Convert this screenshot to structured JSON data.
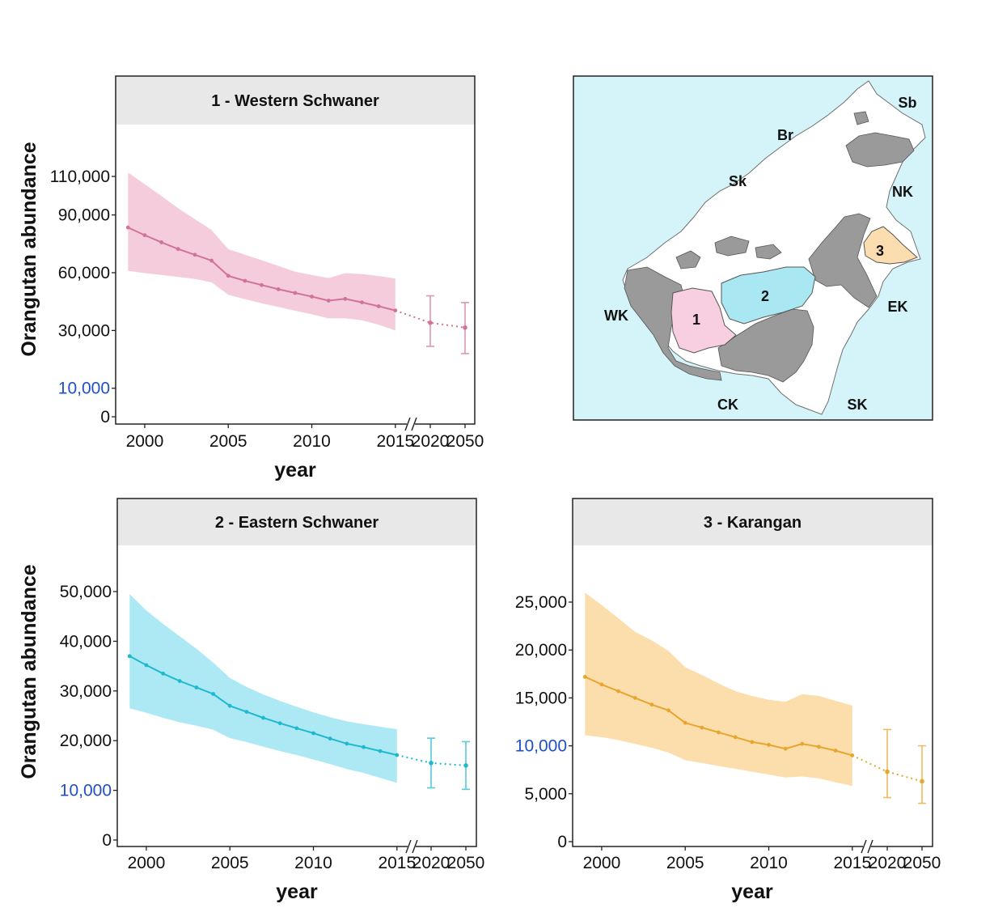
{
  "figure": {
    "ylabel": "Orangutan abundance",
    "xlabel": "year",
    "future_tick_labels": [
      "2020",
      "2050"
    ]
  },
  "chart_data": [
    {
      "type": "line",
      "title": "1 - Western Schwaner",
      "color": "#d0739a",
      "band_color": "#f4c9da",
      "xlabel": "year",
      "ylabel": "Orangutan abundance",
      "x": [
        1999,
        2000,
        2001,
        2002,
        2003,
        2004,
        2005,
        2006,
        2007,
        2008,
        2009,
        2010,
        2011,
        2012,
        2013,
        2014,
        2015
      ],
      "xticks": [
        2000,
        2005,
        2010,
        2015
      ],
      "xlim": [
        1998.6,
        2015.3
      ],
      "values": [
        83500,
        79500,
        75800,
        72300,
        69300,
        66300,
        58400,
        55800,
        53600,
        51400,
        49500,
        47600,
        45500,
        46400,
        44600,
        42600,
        40400
      ],
      "lower": [
        61000,
        59800,
        58800,
        57800,
        56800,
        55000,
        48500,
        46300,
        44100,
        42200,
        40300,
        38400,
        36300,
        36300,
        35300,
        33000,
        30000
      ],
      "upper": [
        112000,
        106000,
        99800,
        93500,
        87800,
        82200,
        72200,
        69300,
        66500,
        63500,
        60500,
        58800,
        57200,
        59800,
        59300,
        58300,
        57000
      ],
      "projections": [
        {
          "label": "2020",
          "value": 34000,
          "lower": 24500,
          "upper": 48000
        },
        {
          "label": "2050",
          "value": 31500,
          "lower": 22000,
          "upper": 44500
        }
      ],
      "yscale": "segmented",
      "scale_knots": [
        [
          0,
          0
        ],
        [
          10000,
          40
        ],
        [
          30000,
          121
        ],
        [
          60000,
          202
        ],
        [
          90000,
          283
        ],
        [
          110000,
          337
        ]
      ],
      "yticks": [
        {
          "v": 0,
          "label": "0",
          "blue": false
        },
        {
          "v": 10000,
          "label": "10,000",
          "blue": true
        },
        {
          "v": 30000,
          "label": "30,000",
          "blue": false
        },
        {
          "v": 60000,
          "label": "60,000",
          "blue": false
        },
        {
          "v": 90000,
          "label": "90,000",
          "blue": false
        },
        {
          "v": 110000,
          "label": "110,000",
          "blue": false
        }
      ]
    },
    {
      "type": "line",
      "title": "2 - Eastern Schwaner",
      "color": "#1fb9cf",
      "band_color": "#a8e8f4",
      "xlabel": "year",
      "ylabel": "Orangutan abundance",
      "x": [
        1999,
        2000,
        2001,
        2002,
        2003,
        2004,
        2005,
        2006,
        2007,
        2008,
        2009,
        2010,
        2011,
        2012,
        2013,
        2014,
        2015
      ],
      "xticks": [
        2000,
        2005,
        2010,
        2015
      ],
      "xlim": [
        1998.6,
        2015.3
      ],
      "values": [
        37000,
        35200,
        33500,
        32000,
        30700,
        29400,
        27000,
        25800,
        24600,
        23500,
        22500,
        21500,
        20400,
        19400,
        18700,
        17900,
        17100
      ],
      "lower": [
        26500,
        25600,
        24600,
        23700,
        23000,
        22200,
        20500,
        19700,
        18800,
        17900,
        17100,
        16200,
        15300,
        14300,
        13500,
        12500,
        11500
      ],
      "upper": [
        49500,
        46200,
        43500,
        41000,
        38500,
        35700,
        32600,
        30800,
        29300,
        28000,
        26800,
        25700,
        24700,
        23900,
        23300,
        22800,
        22300
      ],
      "projections": [
        {
          "label": "2020",
          "value": 15500,
          "lower": 10500,
          "upper": 20500
        },
        {
          "label": "2050",
          "value": 15000,
          "lower": 10200,
          "upper": 19800
        }
      ],
      "yscale": "linear",
      "ylim": [
        0,
        50000
      ],
      "yticks": [
        {
          "v": 0,
          "label": "0",
          "blue": false
        },
        {
          "v": 10000,
          "label": "10,000",
          "blue": true
        },
        {
          "v": 20000,
          "label": "20,000",
          "blue": false
        },
        {
          "v": 30000,
          "label": "30,000",
          "blue": false
        },
        {
          "v": 40000,
          "label": "40,000",
          "blue": false
        },
        {
          "v": 50000,
          "label": "50,000",
          "blue": false
        }
      ]
    },
    {
      "type": "line",
      "title": "3 - Karangan",
      "color": "#e8a530",
      "band_color": "#fbdca6",
      "xlabel": "year",
      "ylabel": "",
      "x": [
        1999,
        2000,
        2001,
        2002,
        2003,
        2004,
        2005,
        2006,
        2007,
        2008,
        2009,
        2010,
        2011,
        2012,
        2013,
        2014,
        2015
      ],
      "xticks": [
        2000,
        2005,
        2010,
        2015
      ],
      "xlim": [
        1998.6,
        2015.3
      ],
      "values": [
        17200,
        16400,
        15700,
        15000,
        14300,
        13700,
        12400,
        11900,
        11400,
        10900,
        10400,
        10100,
        9700,
        10200,
        9900,
        9500,
        9000
      ],
      "lower": [
        11100,
        10900,
        10600,
        10200,
        9800,
        9300,
        8500,
        8200,
        7900,
        7600,
        7300,
        7000,
        6700,
        6800,
        6600,
        6200,
        5800
      ],
      "upper": [
        26000,
        24700,
        23300,
        21900,
        21000,
        19900,
        18200,
        17400,
        16500,
        15700,
        15200,
        14800,
        14600,
        15400,
        15200,
        14700,
        14200
      ],
      "projections": [
        {
          "label": "2020",
          "value": 7300,
          "lower": 4600,
          "upper": 11700
        },
        {
          "label": "2050",
          "value": 6300,
          "lower": 4000,
          "upper": 10000
        }
      ],
      "yscale": "linear",
      "ylim": [
        0,
        25000
      ],
      "yticks": [
        {
          "v": 0,
          "label": "0",
          "blue": false
        },
        {
          "v": 5000,
          "label": "5,000",
          "blue": false
        },
        {
          "v": 10000,
          "label": "10,000",
          "blue": true
        },
        {
          "v": 15000,
          "label": "15,000",
          "blue": false
        },
        {
          "v": 20000,
          "label": "20,000",
          "blue": false
        },
        {
          "v": 25000,
          "label": "25,000",
          "blue": false
        }
      ]
    }
  ],
  "map": {
    "sea_color": "#d4f4fa",
    "land_color": "#ffffff",
    "grey_color": "#9a9a9a",
    "region_labels": [
      "Sb",
      "Br",
      "Sk",
      "NK",
      "WK",
      "EK",
      "CK",
      "SK"
    ],
    "unit_labels": [
      {
        "label": "1",
        "color": "#f7cfe0"
      },
      {
        "label": "2",
        "color": "#a9e8f2"
      },
      {
        "label": "3",
        "color": "#fbddb0"
      }
    ]
  }
}
